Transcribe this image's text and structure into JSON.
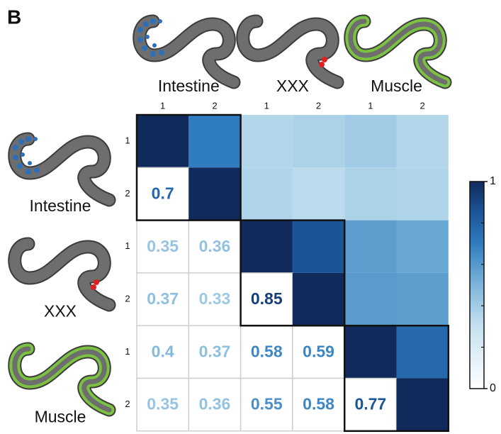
{
  "chart_data": {
    "type": "heatmap",
    "panel_label": "B",
    "groups": [
      "Intestine",
      "XXX",
      "Muscle"
    ],
    "col_labels": [
      "1",
      "2",
      "1",
      "2",
      "1",
      "2"
    ],
    "row_labels": [
      "1",
      "2",
      "1",
      "2",
      "1",
      "2"
    ],
    "values": [
      [
        1,
        null,
        null,
        null,
        null,
        null
      ],
      [
        0.7,
        1,
        null,
        null,
        null,
        null
      ],
      [
        0.35,
        0.36,
        1,
        null,
        null,
        null
      ],
      [
        0.37,
        0.33,
        0.85,
        1,
        null,
        null
      ],
      [
        0.4,
        0.37,
        0.58,
        0.59,
        1,
        null
      ],
      [
        0.35,
        0.36,
        0.55,
        0.58,
        0.77,
        1
      ]
    ],
    "colormap": [
      [
        0,
        "#ffffff"
      ],
      [
        0.3,
        "#c6e1f0"
      ],
      [
        0.5,
        "#7db5da"
      ],
      [
        0.7,
        "#2f7cbf"
      ],
      [
        0.85,
        "#1b5597"
      ],
      [
        1,
        "#102a5c"
      ]
    ],
    "clim": [
      0,
      1
    ],
    "cticks": [
      0,
      1
    ],
    "cminor": [
      0.2,
      0.4,
      0.6,
      0.8
    ]
  }
}
